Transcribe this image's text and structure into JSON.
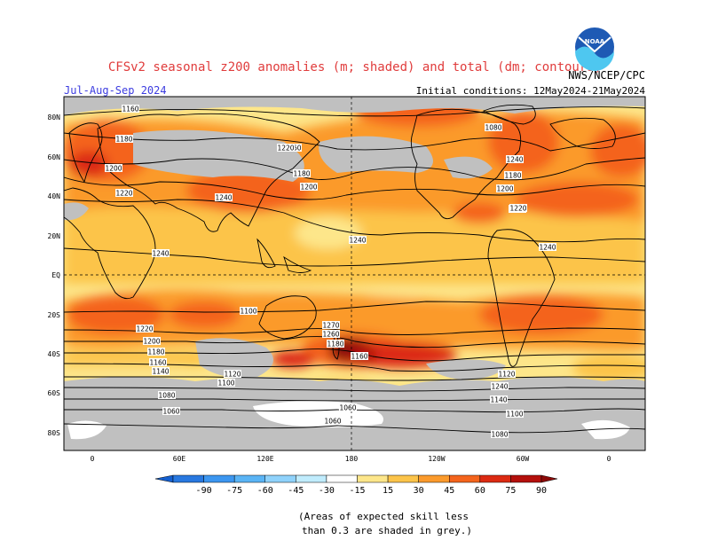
{
  "header": {
    "title": "CFSv2 seasonal z200 anomalies (m; shaded) and total (dm; contours)",
    "season": "Jul-Aug-Sep 2024",
    "source": "NWS/NCEP/CPC",
    "initial_conditions": "Initial conditions: 12May2024-21May2024",
    "logo_text": "NOAA"
  },
  "map": {
    "lat_labels": [
      "80N",
      "60N",
      "40N",
      "20N",
      "EQ",
      "20S",
      "40S",
      "60S",
      "80S"
    ],
    "lon_labels": [
      "0",
      "60E",
      "120E",
      "180",
      "120W",
      "60W",
      "0"
    ],
    "contour_labels": [
      "1160",
      "1180",
      "1200",
      "1220",
      "1240",
      "1240",
      "1240",
      "1240",
      "1240",
      "1220",
      "1200",
      "1180",
      "1160",
      "1140",
      "1120",
      "1100",
      "1080",
      "1060",
      "1270",
      "1260",
      "1180",
      "1160",
      "1160",
      "1180",
      "1200",
      "1220",
      "1240",
      "1180",
      "1200",
      "1220",
      "1240",
      "1120",
      "1140",
      "1100",
      "1080",
      "1060",
      "1060",
      "1080",
      "1100"
    ],
    "skill_mask_color": "#c0c0c0"
  },
  "colorbar": {
    "ticks": [
      "-90",
      "-75",
      "-60",
      "-45",
      "-30",
      "-15",
      "15",
      "30",
      "45",
      "60",
      "75",
      "90"
    ],
    "colors": [
      "#1560d0",
      "#2878e0",
      "#3c96f0",
      "#5ab4f5",
      "#8fd2fb",
      "#c0ecfd",
      "#ffffff",
      "#fde68a",
      "#fcc44a",
      "#fb9a2c",
      "#f4641c",
      "#dc2a12",
      "#b4100c",
      "#8c0a08"
    ]
  },
  "footnote": {
    "line1": "(Areas of expected skill less",
    "line2": "than 0.3 are shaded in grey.)"
  }
}
